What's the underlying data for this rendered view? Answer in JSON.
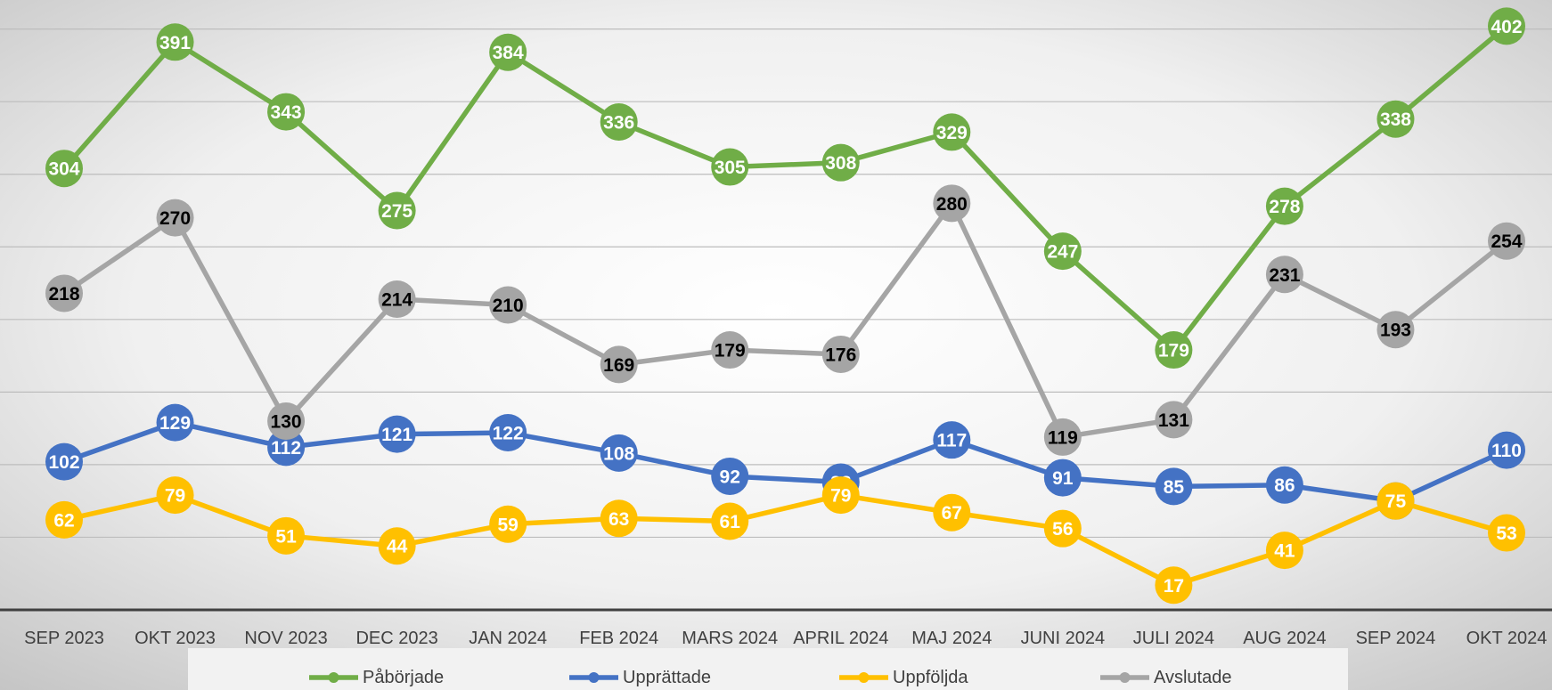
{
  "chart_data": {
    "type": "line",
    "categories": [
      "SEP 2023",
      "OKT 2023",
      "NOV 2023",
      "DEC 2023",
      "JAN 2024",
      "FEB 2024",
      "MARS 2024",
      "APRIL 2024",
      "MAJ 2024",
      "JUNI 2024",
      "JULI 2024",
      "AUG 2024",
      "SEP 2024",
      "OKT 2024"
    ],
    "series": [
      {
        "name": "Påbörjade",
        "color": "#70ad47",
        "label_color": "#ffffff",
        "values": [
          304,
          391,
          343,
          275,
          384,
          336,
          305,
          308,
          329,
          247,
          179,
          278,
          338,
          402
        ]
      },
      {
        "name": "Upprättade",
        "color": "#4472c4",
        "label_color": "#ffffff",
        "values": [
          102,
          129,
          112,
          121,
          122,
          108,
          92,
          88,
          117,
          91,
          85,
          86,
          75,
          110
        ]
      },
      {
        "name": "Uppföljda",
        "color": "#ffc000",
        "label_color": "#ffffff",
        "values": [
          62,
          79,
          51,
          44,
          59,
          63,
          61,
          79,
          67,
          56,
          17,
          41,
          75,
          53
        ]
      },
      {
        "name": "Avslutade",
        "color": "#a5a5a5",
        "label_color": "#000000",
        "values": [
          218,
          270,
          130,
          214,
          210,
          169,
          179,
          176,
          280,
          119,
          131,
          231,
          193,
          254
        ]
      }
    ],
    "ylim": [
      0,
      420
    ],
    "yticks": [
      50,
      100,
      150,
      200,
      250,
      300,
      350,
      400
    ],
    "grid": true,
    "legend": "bottom"
  }
}
